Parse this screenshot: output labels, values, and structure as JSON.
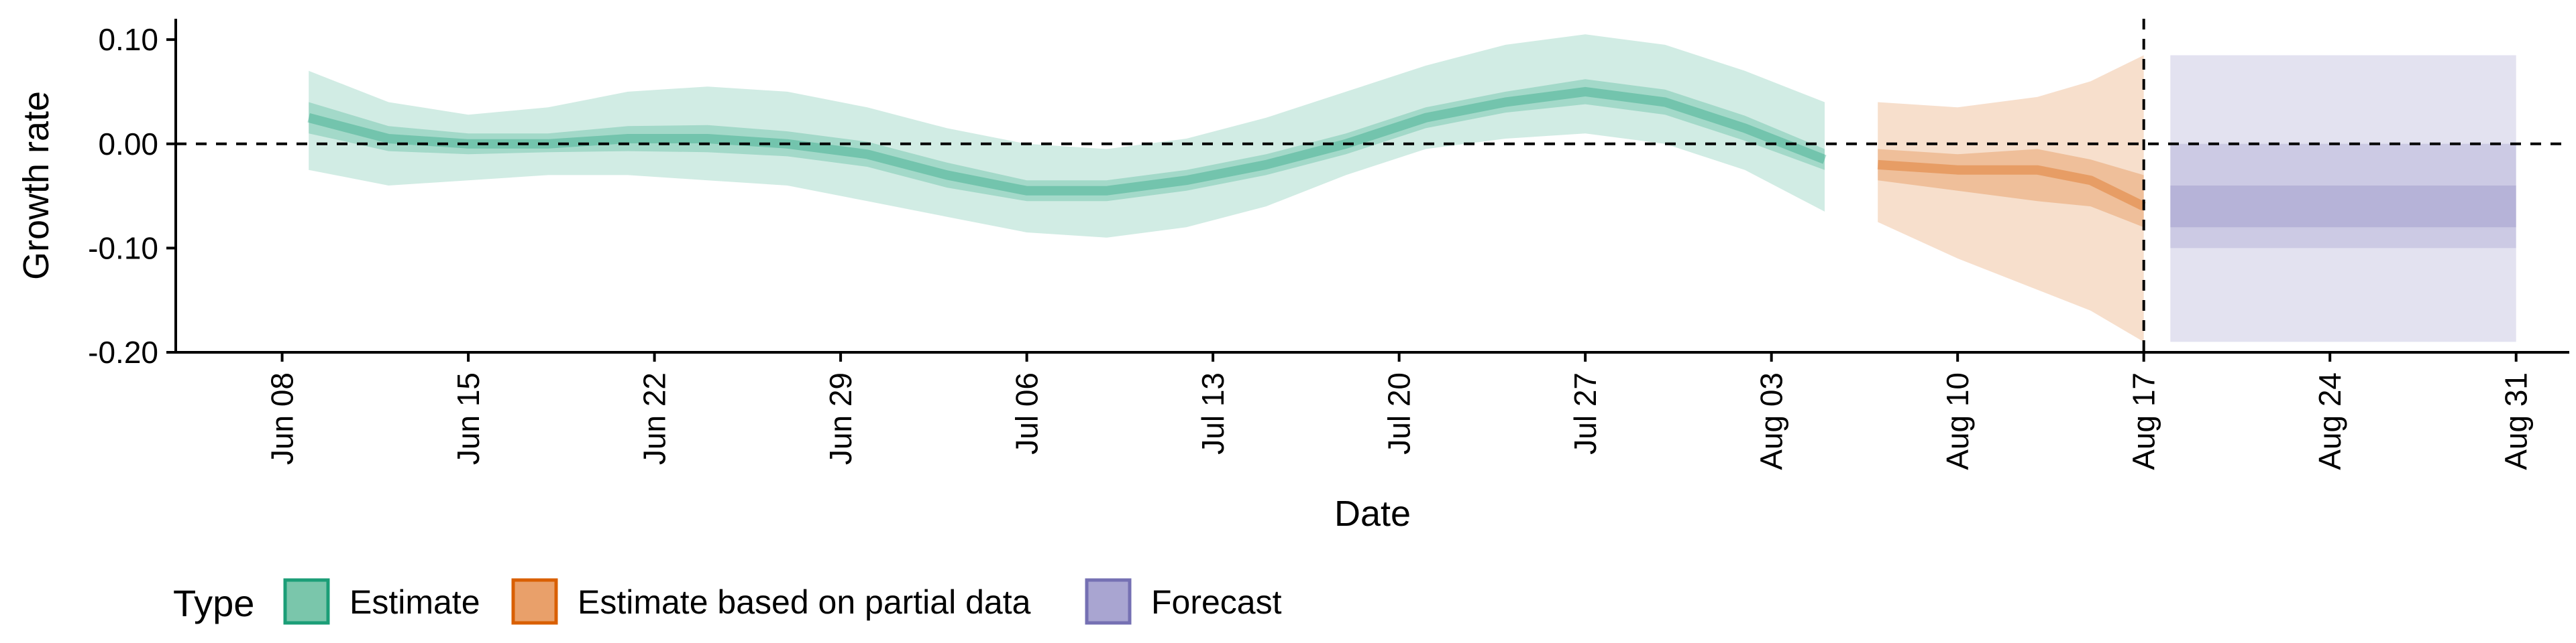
{
  "chart_data": {
    "type": "area",
    "title": "",
    "xlabel": "Date",
    "ylabel": "Growth rate",
    "ylim": [
      -0.2,
      0.12
    ],
    "xlim": [
      "2020-06-04",
      "2020-09-02"
    ],
    "grid": false,
    "y_ticks": [
      {
        "value": 0.1,
        "label": "0.10"
      },
      {
        "value": 0.0,
        "label": "0.00"
      },
      {
        "value": -0.1,
        "label": "-0.10"
      },
      {
        "value": -0.2,
        "label": "-0.20"
      }
    ],
    "x_ticks": [
      {
        "date": "2020-06-08",
        "label": "Jun 08"
      },
      {
        "date": "2020-06-15",
        "label": "Jun 15"
      },
      {
        "date": "2020-06-22",
        "label": "Jun 22"
      },
      {
        "date": "2020-06-29",
        "label": "Jun 29"
      },
      {
        "date": "2020-07-06",
        "label": "Jul 06"
      },
      {
        "date": "2020-07-13",
        "label": "Jul 13"
      },
      {
        "date": "2020-07-20",
        "label": "Jul 20"
      },
      {
        "date": "2020-07-27",
        "label": "Jul 27"
      },
      {
        "date": "2020-08-03",
        "label": "Aug 03"
      },
      {
        "date": "2020-08-10",
        "label": "Aug 10"
      },
      {
        "date": "2020-08-17",
        "label": "Aug 17"
      },
      {
        "date": "2020-08-24",
        "label": "Aug 24"
      },
      {
        "date": "2020-08-31",
        "label": "Aug 31"
      }
    ],
    "reference_lines": [
      {
        "axis": "y",
        "value": 0,
        "style": "dashed"
      },
      {
        "axis": "x",
        "date": "2020-08-17",
        "style": "dashed"
      }
    ],
    "legend": {
      "title": "Type",
      "placement": "bottom",
      "entries": [
        {
          "label": "Estimate",
          "fill": "#7ac6ab",
          "stroke": "#1b9e77"
        },
        {
          "label": "Estimate based on partial data",
          "fill": "#e9a06a",
          "stroke": "#d95f02"
        },
        {
          "label": "Forecast",
          "fill": "#a9a5d1",
          "stroke": "#7570b3"
        }
      ]
    },
    "series": [
      {
        "name": "Estimate",
        "color": "#1b9e77",
        "x": [
          "2020-06-09",
          "2020-06-12",
          "2020-06-15",
          "2020-06-18",
          "2020-06-21",
          "2020-06-24",
          "2020-06-27",
          "2020-06-30",
          "2020-07-03",
          "2020-07-06",
          "2020-07-09",
          "2020-07-12",
          "2020-07-15",
          "2020-07-18",
          "2020-07-21",
          "2020-07-24",
          "2020-07-27",
          "2020-07-30",
          "2020-08-02",
          "2020-08-05"
        ],
        "median": [
          0.025,
          0.005,
          0.0,
          0.0,
          0.005,
          0.005,
          0.0,
          -0.01,
          -0.03,
          -0.045,
          -0.045,
          -0.035,
          -0.02,
          0.0,
          0.025,
          0.04,
          0.05,
          0.04,
          0.015,
          -0.015
        ],
        "lower_50": [
          0.01,
          -0.007,
          -0.01,
          -0.008,
          -0.007,
          -0.008,
          -0.012,
          -0.022,
          -0.042,
          -0.055,
          -0.055,
          -0.045,
          -0.03,
          -0.01,
          0.015,
          0.03,
          0.038,
          0.028,
          0.003,
          -0.025
        ],
        "upper_50": [
          0.04,
          0.017,
          0.01,
          0.01,
          0.017,
          0.018,
          0.012,
          0.002,
          -0.018,
          -0.035,
          -0.035,
          -0.025,
          -0.01,
          0.01,
          0.035,
          0.05,
          0.062,
          0.052,
          0.027,
          -0.005
        ],
        "lower_90": [
          -0.025,
          -0.04,
          -0.035,
          -0.03,
          -0.03,
          -0.035,
          -0.04,
          -0.055,
          -0.07,
          -0.085,
          -0.09,
          -0.08,
          -0.06,
          -0.03,
          -0.005,
          0.005,
          0.01,
          0.0,
          -0.025,
          -0.065
        ],
        "upper_90": [
          0.07,
          0.04,
          0.028,
          0.035,
          0.05,
          0.055,
          0.05,
          0.035,
          0.015,
          0.0,
          -0.005,
          0.005,
          0.025,
          0.05,
          0.075,
          0.095,
          0.105,
          0.095,
          0.07,
          0.04
        ]
      },
      {
        "name": "Estimate based on partial data",
        "color": "#d95f02",
        "x": [
          "2020-08-07",
          "2020-08-10",
          "2020-08-13",
          "2020-08-15",
          "2020-08-17"
        ],
        "median": [
          -0.02,
          -0.025,
          -0.025,
          -0.035,
          -0.06
        ],
        "lower_50": [
          -0.035,
          -0.045,
          -0.055,
          -0.06,
          -0.08
        ],
        "upper_50": [
          -0.005,
          -0.01,
          -0.005,
          -0.015,
          -0.03
        ],
        "lower_90": [
          -0.075,
          -0.11,
          -0.14,
          -0.16,
          -0.19
        ],
        "upper_90": [
          0.04,
          0.035,
          0.045,
          0.06,
          0.085
        ]
      },
      {
        "name": "Forecast",
        "color": "#7570b3",
        "x": [
          "2020-08-18",
          "2020-08-31"
        ],
        "median": [
          -0.06,
          -0.06
        ],
        "lower_50": [
          -0.08,
          -0.08
        ],
        "upper_50": [
          -0.04,
          -0.04
        ],
        "lower_90": [
          -0.19,
          -0.19
        ],
        "upper_90": [
          0.085,
          0.085
        ],
        "lower_mid": [
          -0.1,
          -0.1
        ],
        "upper_mid": [
          0.0,
          0.0
        ]
      }
    ]
  }
}
